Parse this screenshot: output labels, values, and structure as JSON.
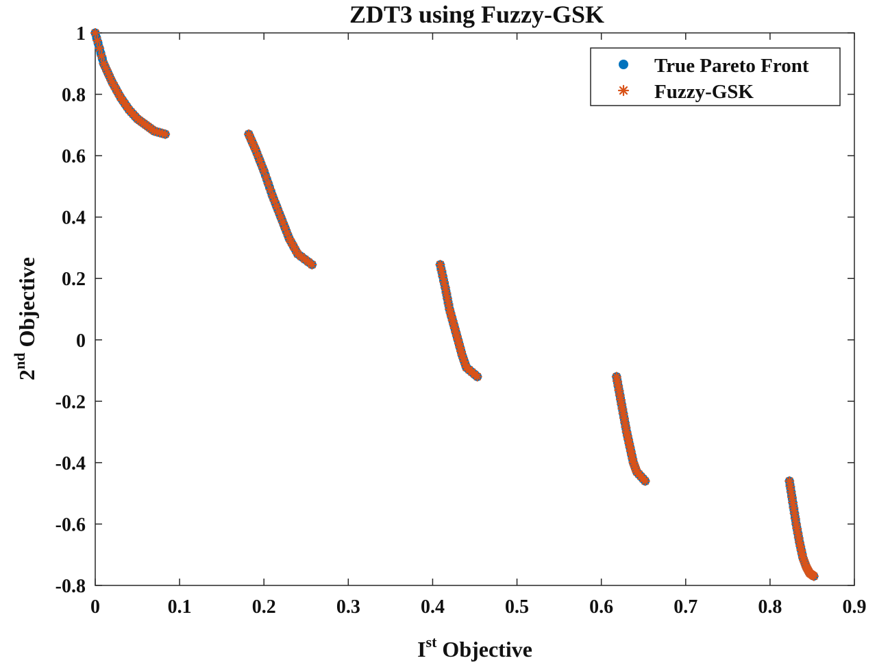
{
  "chart_data": {
    "type": "scatter",
    "title": "ZDT3 using Fuzzy-GSK",
    "xlabel": {
      "base": "I",
      "sup": "st",
      "rest": " Objective"
    },
    "ylabel": {
      "base": "2",
      "sup": "nd",
      "rest": " Objective"
    },
    "xlim": [
      0,
      0.9
    ],
    "ylim": [
      -0.8,
      1
    ],
    "xticks": [
      0,
      0.1,
      0.2,
      0.3,
      0.4,
      0.5,
      0.6,
      0.7,
      0.8,
      0.9
    ],
    "xtick_labels": [
      "0",
      "0.1",
      "0.2",
      "0.3",
      "0.4",
      "0.5",
      "0.6",
      "0.7",
      "0.8",
      "0.9"
    ],
    "yticks": [
      -0.8,
      -0.6,
      -0.4,
      -0.2,
      0,
      0.2,
      0.4,
      0.6,
      0.8,
      1
    ],
    "ytick_labels": [
      "-0.8",
      "-0.6",
      "-0.4",
      "-0.2",
      "0",
      "0.2",
      "0.4",
      "0.6",
      "0.8",
      "1"
    ],
    "legend_position": "top-right",
    "series": [
      {
        "name": "True Pareto Front",
        "marker": "filled-circle",
        "color": "#0072BD",
        "segments": [
          {
            "x": [
              0.0,
              0.01,
              0.02,
              0.03,
              0.04,
              0.05,
              0.06,
              0.07,
              0.083
            ],
            "y": [
              1.0,
              0.9,
              0.84,
              0.79,
              0.75,
              0.72,
              0.7,
              0.68,
              0.67
            ]
          },
          {
            "x": [
              0.182,
              0.19,
              0.2,
              0.21,
              0.22,
              0.23,
              0.24,
              0.257
            ],
            "y": [
              0.67,
              0.62,
              0.55,
              0.47,
              0.4,
              0.33,
              0.28,
              0.245
            ]
          },
          {
            "x": [
              0.409,
              0.415,
              0.42,
              0.425,
              0.43,
              0.435,
              0.44,
              0.453
            ],
            "y": [
              0.245,
              0.17,
              0.1,
              0.05,
              0.0,
              -0.05,
              -0.09,
              -0.12
            ]
          },
          {
            "x": [
              0.618,
              0.622,
              0.626,
              0.63,
              0.634,
              0.638,
              0.642,
              0.652
            ],
            "y": [
              -0.12,
              -0.18,
              -0.24,
              -0.3,
              -0.35,
              -0.4,
              -0.43,
              -0.46
            ]
          },
          {
            "x": [
              0.823,
              0.827,
              0.831,
              0.835,
              0.839,
              0.843,
              0.847,
              0.852
            ],
            "y": [
              -0.46,
              -0.53,
              -0.6,
              -0.66,
              -0.71,
              -0.74,
              -0.76,
              -0.77
            ]
          }
        ]
      },
      {
        "name": "Fuzzy-GSK",
        "marker": "asterisk",
        "color": "#D95319",
        "segments": [
          {
            "x": [
              0.0,
              0.01,
              0.02,
              0.03,
              0.04,
              0.05,
              0.06,
              0.07,
              0.083
            ],
            "y": [
              1.0,
              0.9,
              0.84,
              0.79,
              0.75,
              0.72,
              0.7,
              0.68,
              0.67
            ]
          },
          {
            "x": [
              0.182,
              0.19,
              0.2,
              0.21,
              0.22,
              0.23,
              0.24,
              0.257
            ],
            "y": [
              0.67,
              0.62,
              0.55,
              0.47,
              0.4,
              0.33,
              0.28,
              0.245
            ]
          },
          {
            "x": [
              0.409,
              0.415,
              0.42,
              0.425,
              0.43,
              0.435,
              0.44,
              0.453
            ],
            "y": [
              0.245,
              0.17,
              0.1,
              0.05,
              0.0,
              -0.05,
              -0.09,
              -0.12
            ]
          },
          {
            "x": [
              0.618,
              0.622,
              0.626,
              0.63,
              0.634,
              0.638,
              0.642,
              0.652
            ],
            "y": [
              -0.12,
              -0.18,
              -0.24,
              -0.3,
              -0.35,
              -0.4,
              -0.43,
              -0.46
            ]
          },
          {
            "x": [
              0.823,
              0.827,
              0.831,
              0.835,
              0.839,
              0.843,
              0.847,
              0.852
            ],
            "y": [
              -0.46,
              -0.53,
              -0.6,
              -0.66,
              -0.71,
              -0.74,
              -0.76,
              -0.77
            ]
          }
        ]
      }
    ]
  }
}
